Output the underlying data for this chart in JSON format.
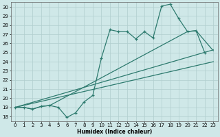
{
  "xlabel": "Humidex (Indice chaleur)",
  "xlim": [
    -0.5,
    23.5
  ],
  "ylim": [
    17.5,
    30.5
  ],
  "yticks": [
    18,
    19,
    20,
    21,
    22,
    23,
    24,
    25,
    26,
    27,
    28,
    29,
    30
  ],
  "xticks": [
    0,
    1,
    2,
    3,
    4,
    5,
    6,
    7,
    8,
    9,
    10,
    11,
    12,
    13,
    14,
    15,
    16,
    17,
    18,
    19,
    20,
    21,
    22,
    23
  ],
  "bg_color": "#cfe8e8",
  "grid_color": "#b0cece",
  "line_color": "#2d7a6e",
  "series_main": {
    "x": [
      0,
      1,
      2,
      3,
      4,
      5,
      6,
      7,
      8,
      9,
      10,
      11,
      12,
      13,
      14,
      15,
      16,
      17,
      18,
      19,
      20,
      21,
      22
    ],
    "y": [
      19.0,
      19.0,
      18.8,
      19.1,
      19.2,
      19.0,
      17.9,
      18.4,
      19.6,
      20.3,
      24.4,
      27.5,
      27.3,
      27.3,
      26.5,
      27.3,
      26.6,
      30.1,
      30.3,
      28.7,
      27.3,
      27.4,
      25.0
    ]
  },
  "line1": {
    "x": [
      0,
      23
    ],
    "y": [
      19.0,
      25.3
    ]
  },
  "line2": {
    "x": [
      0,
      23
    ],
    "y": [
      19.0,
      24.0
    ]
  },
  "line3": {
    "x": [
      0,
      1,
      2,
      3,
      4,
      20,
      21,
      23
    ],
    "y": [
      19.0,
      19.0,
      18.8,
      19.1,
      19.2,
      27.3,
      27.4,
      25.2
    ]
  }
}
